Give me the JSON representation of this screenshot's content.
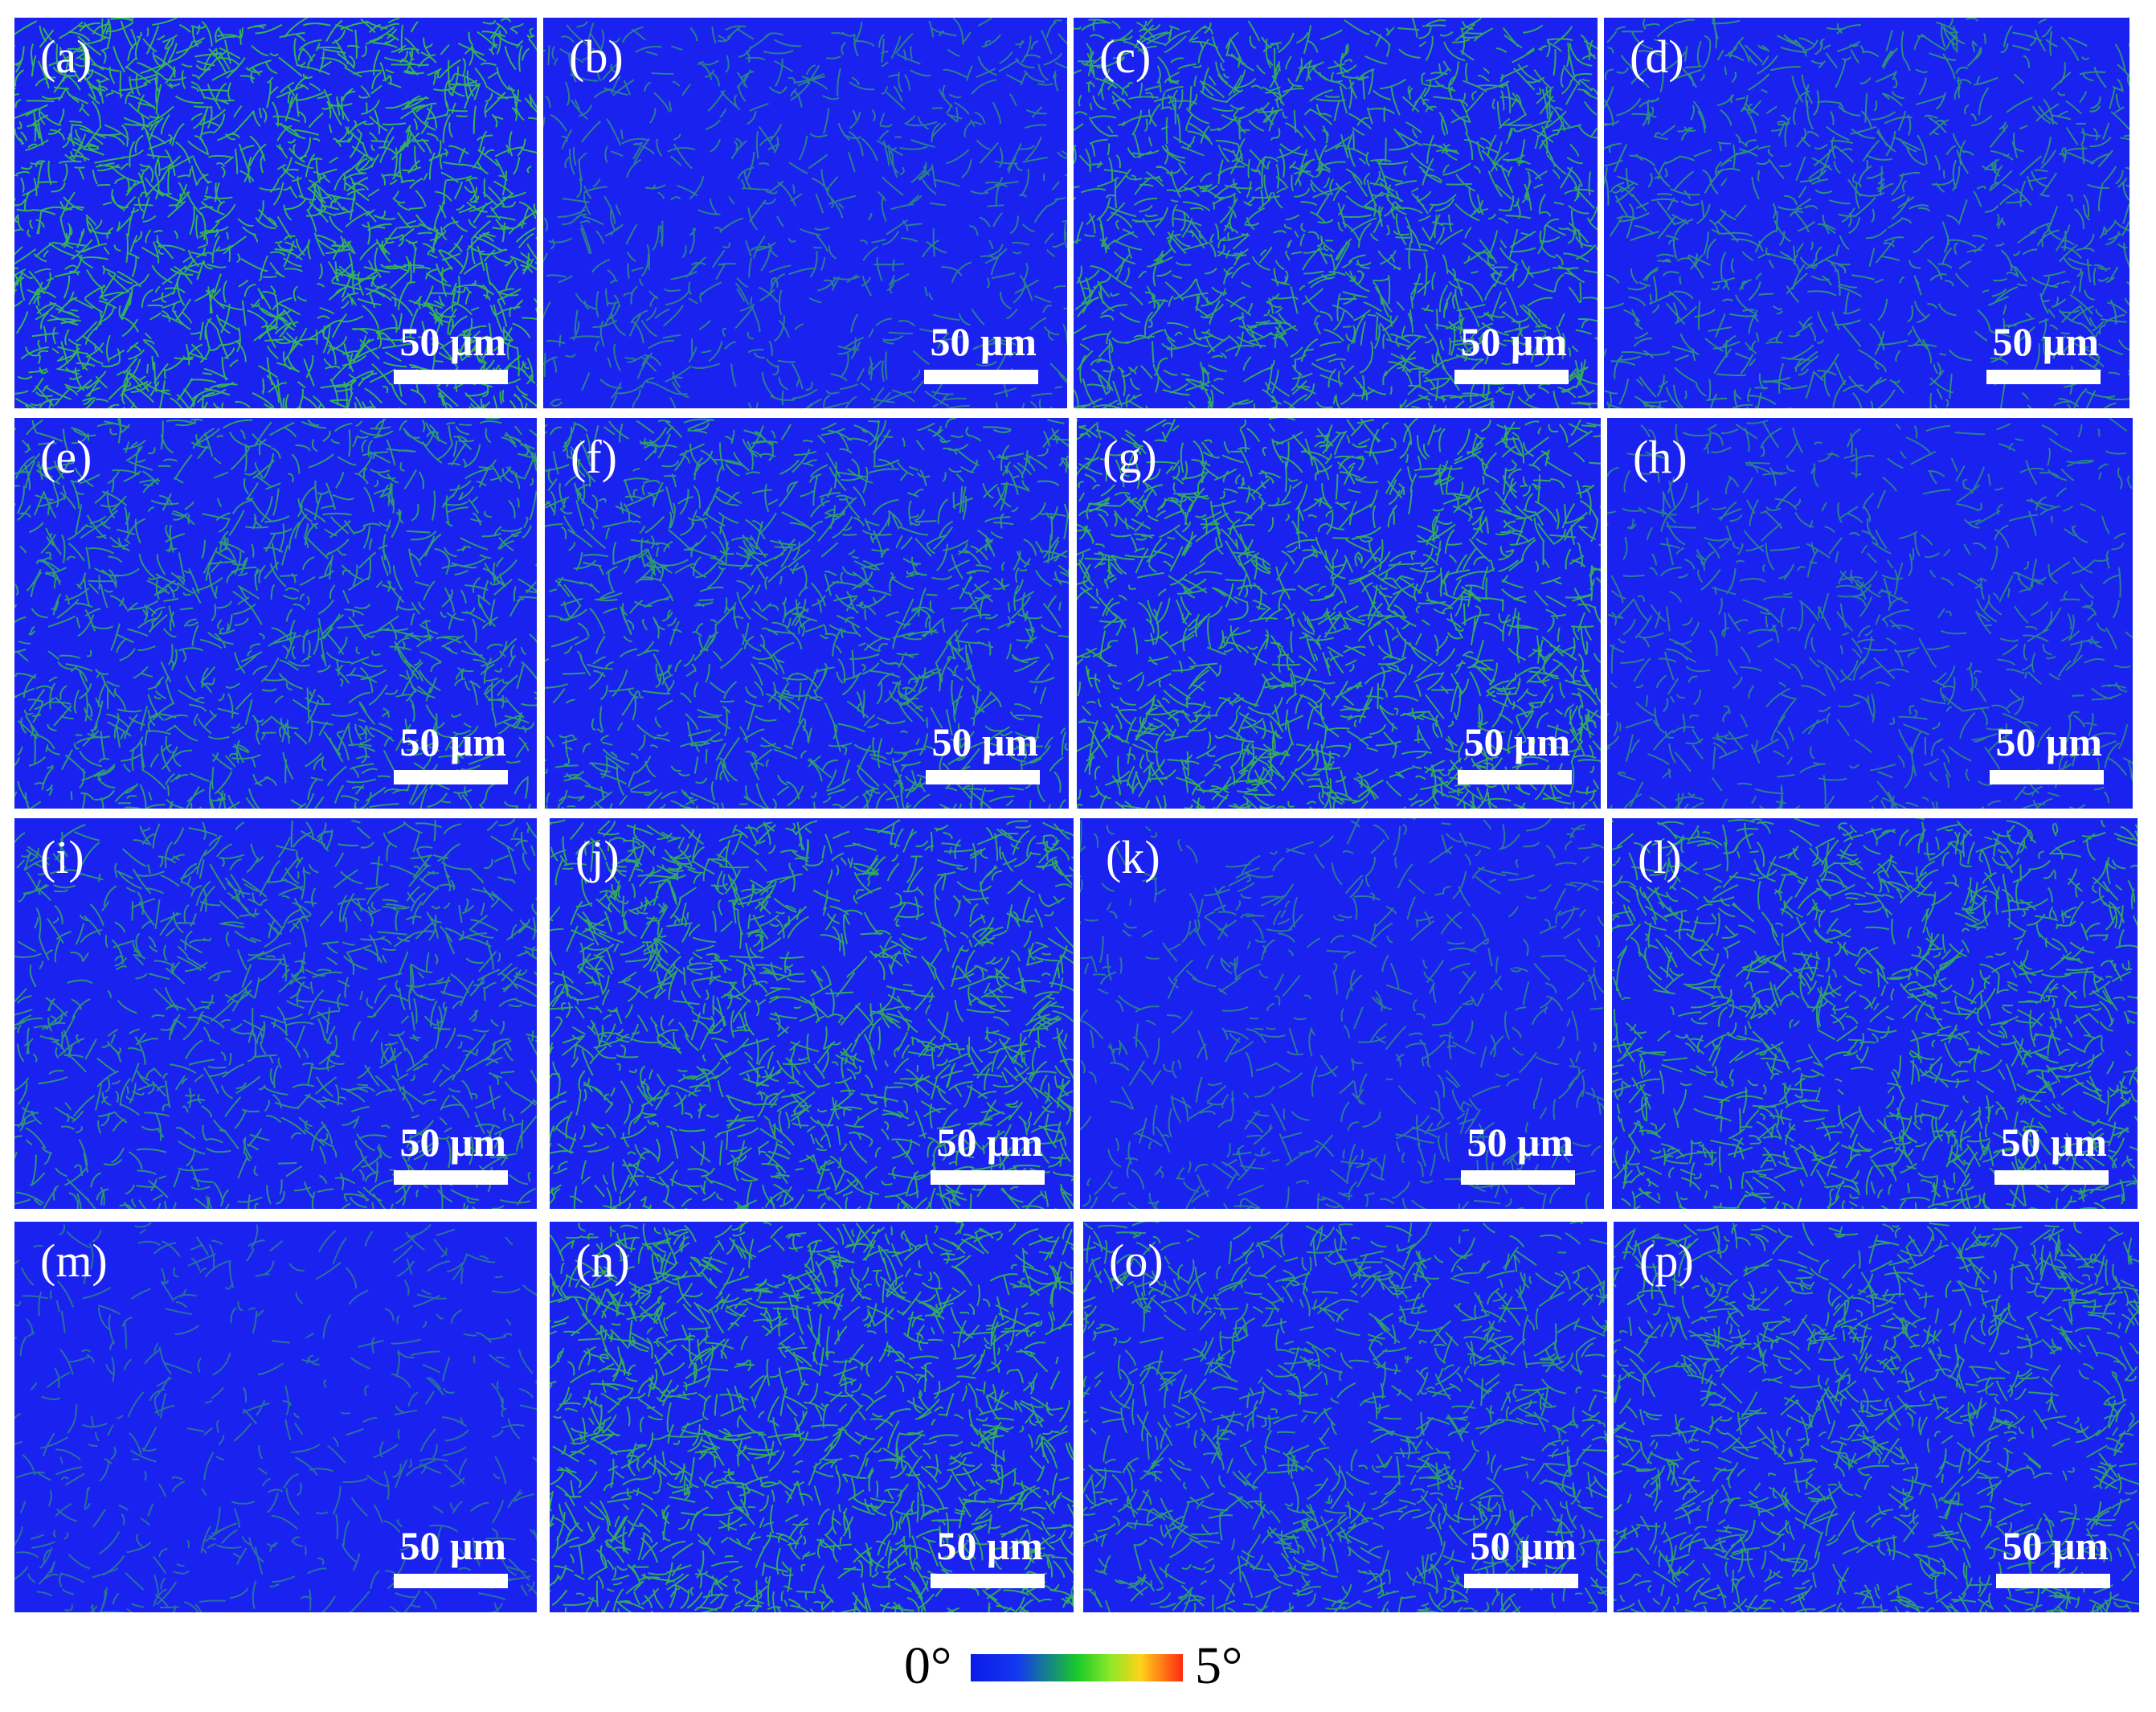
{
  "colors": {
    "blue_base": "#1a22f0",
    "green_boundaries": "#3ee028",
    "panel_label": "#ffffff",
    "scale_bar": "#ffffff"
  },
  "scale_label": "50 μm",
  "panels": [
    {
      "label": "(a)",
      "green_density": 0.9
    },
    {
      "label": "(b)",
      "green_density": 0.3
    },
    {
      "label": "(c)",
      "green_density": 0.75
    },
    {
      "label": "(d)",
      "green_density": 0.45
    },
    {
      "label": "(e)",
      "green_density": 0.6
    },
    {
      "label": "(f)",
      "green_density": 0.6
    },
    {
      "label": "(g)",
      "green_density": 0.8
    },
    {
      "label": "(h)",
      "green_density": 0.3
    },
    {
      "label": "(i)",
      "green_density": 0.5
    },
    {
      "label": "(j)",
      "green_density": 0.75
    },
    {
      "label": "(k)",
      "green_density": 0.25
    },
    {
      "label": "(l)",
      "green_density": 0.7
    },
    {
      "label": "(m)",
      "green_density": 0.15
    },
    {
      "label": "(n)",
      "green_density": 0.8
    },
    {
      "label": "(o)",
      "green_density": 0.6
    },
    {
      "label": "(p)",
      "green_density": 0.65
    }
  ],
  "colorbar": {
    "min_label": "0°",
    "max_label": "5°"
  }
}
